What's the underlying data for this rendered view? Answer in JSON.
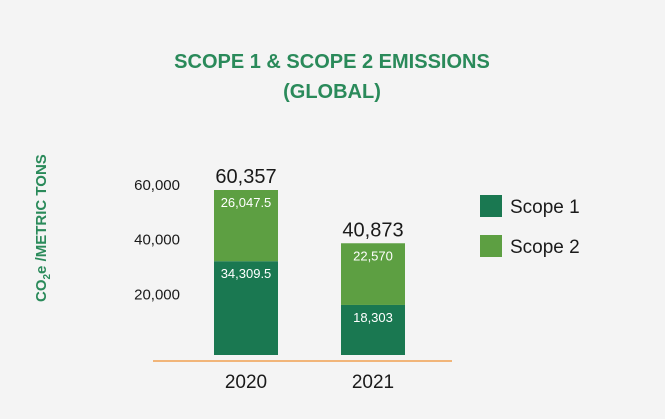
{
  "chart_data": {
    "type": "bar",
    "stacked": true,
    "title": [
      "SCOPE 1 & SCOPE 2 EMISSIONS",
      "(GLOBAL)"
    ],
    "ylabel": {
      "prefix": "CO",
      "subscript": "2",
      "suffix": "e /METRIC TONS"
    },
    "xlabel": "",
    "categories": [
      "2020",
      "2021"
    ],
    "series": [
      {
        "name": "Scope 1",
        "values": [
          34309.5,
          18303
        ],
        "labels": [
          "34,309.5",
          "18,303"
        ],
        "color": "#1a7851"
      },
      {
        "name": "Scope 2",
        "values": [
          26047.5,
          22570
        ],
        "labels": [
          "26,047.5",
          "22,570"
        ],
        "color": "#5d9f42"
      }
    ],
    "totals": [
      "60,357",
      "40,873"
    ],
    "yticks": [
      "20,000",
      "40,000",
      "60,000"
    ],
    "ytick_values": [
      20000,
      40000,
      60000
    ],
    "ylim": [
      0,
      60357
    ],
    "grid": false,
    "legend": "right",
    "axis_color": "#f0a050"
  }
}
